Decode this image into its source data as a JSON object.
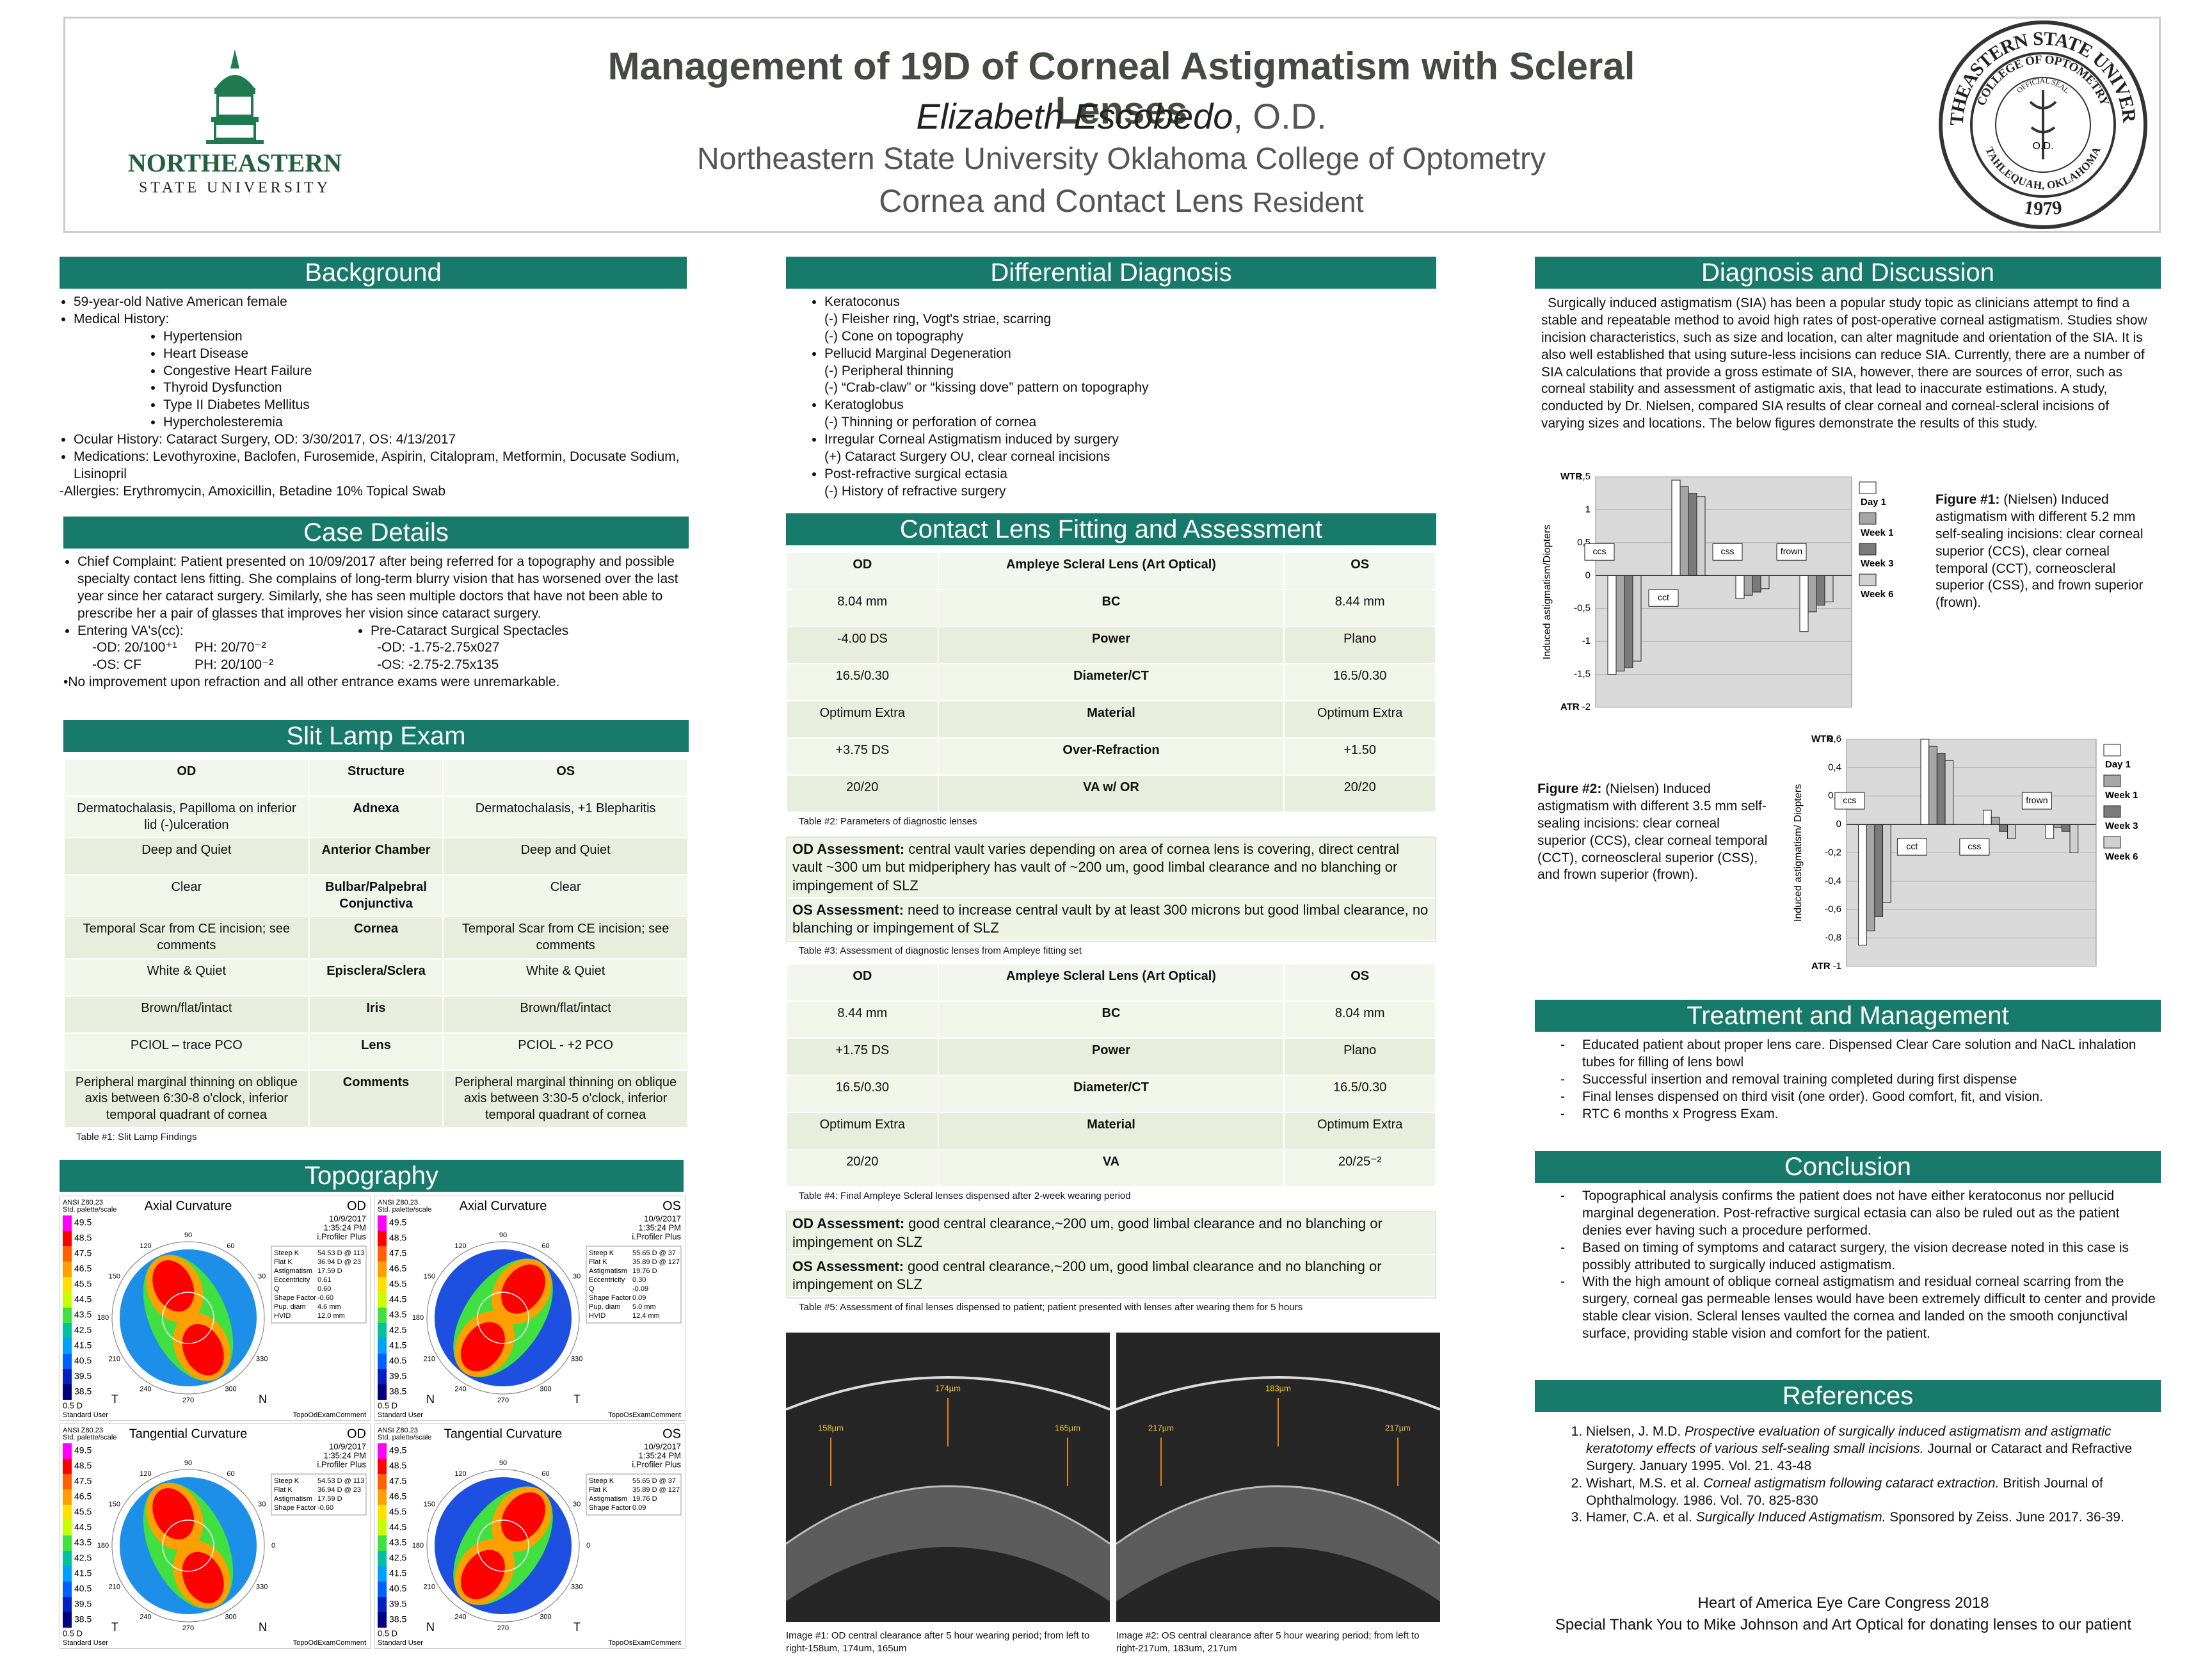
{
  "header": {
    "title": "Management of 19D of Corneal Astigmatism with Scleral Lenses",
    "author": "Elizabeth Escobedo",
    "author_suffix": ", O.D.",
    "institution": "Northeastern State University Oklahoma College of Optometry",
    "position": "Cornea and Contact Lens",
    "position_suffix": "Resident",
    "logo": [
      "NORTHEASTERN",
      "STATE UNIVERSITY"
    ],
    "seal": {
      "outer": "NORTHEASTERN STATE UNIVERSITY",
      "inner": "COLLEGE OF OPTOMETRY",
      "center_top": "OFFICIAL SEAL",
      "center": "O.D.",
      "bottom": "TAHLEQUAH, OKLAHOMA",
      "year": "1979"
    }
  },
  "background": {
    "title": "Background",
    "items": [
      {
        "text": "59-year-old Native American female"
      },
      {
        "text": "Medical History:",
        "sub": [
          "Hypertension",
          "Heart Disease",
          "Congestive Heart Failure",
          "Thyroid Dysfunction",
          "Type II Diabetes Mellitus",
          "Hypercholesteremia"
        ]
      },
      {
        "text": "Ocular History: Cataract Surgery, OD: 3/30/2017, OS: 4/13/2017"
      },
      {
        "text": "Medications: Levothyroxine, Baclofen, Furosemide, Aspirin, Citalopram, Metformin, Docusate Sodium, Lisinopril"
      }
    ],
    "note": "-Allergies: Erythromycin, Amoxicillin, Betadine 10% Topical Swab"
  },
  "case_details": {
    "title": "Case Details",
    "chief_complaint": "Chief Complaint: Patient presented on 10/09/2017 after being referred for a topography and possible specialty contact lens fitting. She complains of long-term blurry vision that has worsened over the last year since her cataract surgery. Similarly, she has seen multiple doctors that have not been able to prescribe her a pair of glasses that improves her vision since cataract surgery.",
    "entering_va": {
      "heading": "Entering VA's(cc):",
      "lines": [
        [
          "-OD: 20/100⁺¹",
          "PH: 20/70⁻²"
        ],
        [
          "-OS: CF",
          "PH: 20/100⁻²"
        ]
      ]
    },
    "spectacles": {
      "heading": "Pre-Cataract Surgical Spectacles",
      "lines": [
        "-OD: -1.75-2.75x027",
        "-OS: -2.75-2.75x135"
      ]
    },
    "note": "•No improvement upon refraction and all other entrance exams were unremarkable."
  },
  "slit_lamp": {
    "title": "Slit Lamp Exam",
    "table": {
      "header": [
        "OD",
        "Structure",
        "OS"
      ],
      "rows": [
        [
          "Dermatochalasis, Papilloma on inferior lid (-)ulceration",
          "Adnexa",
          "Dermatochalasis, +1 Blepharitis"
        ],
        [
          "Deep and Quiet",
          "Anterior Chamber",
          "Deep and Quiet"
        ],
        [
          "Clear",
          "Bulbar/Palpebral Conjunctiva",
          "Clear"
        ],
        [
          "Temporal Scar from CE incision; see comments",
          "Cornea",
          "Temporal Scar from CE incision; see comments"
        ],
        [
          "White & Quiet",
          "Episclera/Sclera",
          "White & Quiet"
        ],
        [
          "Brown/flat/intact",
          "Iris",
          "Brown/flat/intact"
        ],
        [
          "PCIOL – trace PCO",
          "Lens",
          "PCIOL - +2 PCO"
        ],
        [
          "Peripheral marginal thinning on oblique axis between 6:30-8 o'clock, inferior temporal quadrant of cornea",
          "Comments",
          "Peripheral marginal thinning on oblique axis between 3:30-5 o'clock, inferior temporal quadrant of cornea"
        ]
      ],
      "caption": "Table #1: Slit Lamp Findings"
    }
  },
  "topography": {
    "title": "Topography",
    "standard": "ANSI Z80.23",
    "palette": "Std. palette/scale",
    "scale": [
      49.5,
      48.5,
      47.5,
      46.5,
      45.5,
      44.5,
      43.5,
      42.5,
      41.5,
      40.5,
      39.5,
      38.5
    ],
    "step": "0.5 D",
    "date": "10/9/2017",
    "time": "1:35:24 PM",
    "device": "i.Profiler Plus",
    "user": "Standard User",
    "angles": [
      90,
      60,
      30,
      0,
      330,
      300,
      270,
      240,
      210,
      180,
      150,
      120
    ],
    "panels": [
      {
        "title": "Axial Curvature",
        "eye": "OD",
        "left": "T",
        "right": "N",
        "comment": "TopoOdExamComment",
        "stats": [
          [
            "Steep K",
            "54.53 D @ 113"
          ],
          [
            "Flat K",
            "36.94 D @ 23"
          ],
          [
            "Astigmatism",
            "17.59 D"
          ],
          [
            "Eccentricity",
            "0.61"
          ],
          [
            "Q",
            "0.60"
          ],
          [
            "Shape Factor",
            "-0.60"
          ],
          [
            "Pup. diam",
            "4.6 mm"
          ],
          [
            "HVID",
            "12.0 mm"
          ]
        ]
      },
      {
        "title": "Axial Curvature",
        "eye": "OS",
        "left": "N",
        "right": "T",
        "comment": "TopoOsExamComment",
        "stats": [
          [
            "Steep K",
            "55.65 D @ 37"
          ],
          [
            "Flat K",
            "35.89 D @ 127"
          ],
          [
            "Astigmatism",
            "19.76 D"
          ],
          [
            "Eccentricity",
            "0.30"
          ],
          [
            "Q",
            "-0.09"
          ],
          [
            "Shape Factor",
            "0.09"
          ],
          [
            "Pup. diam",
            "5.0 mm"
          ],
          [
            "HVID",
            "12.4 mm"
          ]
        ]
      },
      {
        "title": "Tangential Curvature",
        "eye": "OD",
        "left": "T",
        "right": "N",
        "comment": "TopoOdExamComment",
        "stats": [
          [
            "Steep K",
            "54.53 D @ 113"
          ],
          [
            "Flat K",
            "36.94 D @ 23"
          ],
          [
            "Astigmatism",
            "17.59 D"
          ],
          [
            "Shape Factor",
            "-0.60"
          ]
        ]
      },
      {
        "title": "Tangential Curvature",
        "eye": "OS",
        "left": "N",
        "right": "T",
        "comment": "TopoOsExamComment",
        "stats": [
          [
            "Steep K",
            "55.65 D @ 37"
          ],
          [
            "Flat K",
            "35.89 D @ 127"
          ],
          [
            "Astigmatism",
            "19.76 D"
          ],
          [
            "Shape Factor",
            "0.09"
          ]
        ]
      }
    ]
  },
  "differential": {
    "title": "Differential Diagnosis",
    "items": [
      {
        "text": "Keratoconus",
        "sub": [
          "(-) Fleisher ring, Vogt's striae, scarring",
          "(-) Cone on topography"
        ]
      },
      {
        "text": "Pellucid Marginal Degeneration",
        "sub": [
          "(-) Peripheral thinning",
          "(-) “Crab-claw” or “kissing dove” pattern on topography"
        ]
      },
      {
        "text": "Keratoglobus",
        "sub": [
          "(-) Thinning or perforation of cornea"
        ]
      },
      {
        "text": "Irregular Corneal Astigmatism induced by surgery",
        "sub": [
          "(+) Cataract Surgery OU, clear corneal incisions"
        ]
      },
      {
        "text": "Post-refractive surgical ectasia",
        "sub": [
          "(-) History of refractive surgery"
        ]
      }
    ]
  },
  "fitting": {
    "title": "Contact Lens Fitting and Assessment",
    "diagnostic_table": {
      "header": [
        "OD",
        "Ampleye Scleral Lens (Art Optical)",
        "OS"
      ],
      "rows": [
        [
          "8.04 mm",
          "BC",
          "8.44 mm"
        ],
        [
          "-4.00 DS",
          "Power",
          "Plano"
        ],
        [
          "16.5/0.30",
          "Diameter/CT",
          "16.5/0.30"
        ],
        [
          "Optimum Extra",
          "Material",
          "Optimum Extra"
        ],
        [
          "+3.75 DS",
          "Over-Refraction",
          "+1.50"
        ],
        [
          "20/20",
          "VA w/ OR",
          "20/20"
        ]
      ],
      "caption": "Table #2: Parameters of diagnostic lenses"
    },
    "diagnostic_assessment": {
      "rows": [
        {
          "label": "OD Assessment:",
          "text": "central vault varies depending on area of cornea lens is covering, direct central vault ~300 um but midperiphery has vault of ~200 um, good limbal clearance and no blanching or impingement of SLZ"
        },
        {
          "label": "OS Assessment:",
          "text": "need to increase central vault by at least 300 microns but good limbal clearance, no blanching or impingement of SLZ"
        }
      ],
      "caption": "Table #3: Assessment of diagnostic lenses from Ampleye fitting set"
    },
    "final_table": {
      "header": [
        "OD",
        "Ampleye Scleral Lens (Art Optical)",
        "OS"
      ],
      "rows": [
        [
          "8.44 mm",
          "BC",
          "8.04 mm"
        ],
        [
          "+1.75 DS",
          "Power",
          "Plano"
        ],
        [
          "16.5/0.30",
          "Diameter/CT",
          "16.5/0.30"
        ],
        [
          "Optimum Extra",
          "Material",
          "Optimum Extra"
        ],
        [
          "20/20",
          "VA",
          "20/25⁻²"
        ]
      ],
      "caption": "Table #4: Final Ampleye Scleral lenses dispensed after 2-week wearing period"
    },
    "final_assessment": {
      "rows": [
        {
          "label": "OD Assessment:",
          "text": "good central clearance,~200 um, good limbal clearance and no blanching or impingement on SLZ"
        },
        {
          "label": "OS Assessment:",
          "text": "good central clearance,~200 um, good limbal clearance and no blanching or impingement on SLZ"
        }
      ],
      "caption": "Table #5: Assessment of final lenses dispensed to patient; patient presented with lenses after wearing them for 5 hours"
    },
    "oct": [
      {
        "labels": [
          "158µm",
          "174µm",
          "165µm"
        ],
        "caption": "Image #1: OD central clearance after 5 hour wearing period; from left to right-158um, 174um, 165um"
      },
      {
        "labels": [
          "217µm",
          "183µm",
          "217µm"
        ],
        "caption": "Image #2: OS central clearance after 5 hour wearing period; from left to right-217um, 183um, 217um"
      }
    ]
  },
  "discussion": {
    "title": "Diagnosis and Discussion",
    "text": "Surgically induced astigmatism (SIA) has been a popular study topic as clinicians attempt to find a stable and repeatable method to avoid high rates of post-operative corneal astigmatism. Studies show incision characteristics, such as size and location, can alter magnitude and orientation of the SIA. It is also well established that using suture-less incisions can reduce SIA. Currently, there are a number of SIA calculations that provide a gross estimate of SIA, however, there are sources of error, such as corneal stability and assessment of astigmatic axis, that lead to inaccurate estimations. A study, conducted by Dr. Nielsen, compared SIA results of clear corneal and corneal-scleral incisions of varying sizes and locations. The below figures demonstrate the results of this study."
  },
  "chart_data": [
    {
      "type": "bar",
      "caption_label": "Figure #1:",
      "caption": " (Nielsen) Induced astigmatism with different 5.2 mm self-sealing incisions: clear corneal superior (CCS), clear corneal temporal (CCT), corneoscleral superior (CSS), and frown superior (frown).",
      "y_label": "Induced astigmatism/Diopters",
      "y_top_label": "WTR",
      "y_bottom_label": "ATR",
      "categories": [
        "ccs",
        "cct",
        "css",
        "frown"
      ],
      "series": [
        {
          "name": "Day 1",
          "color": "#ffffff",
          "values": [
            -1.5,
            1.45,
            -0.35,
            -0.85
          ]
        },
        {
          "name": "Week 1",
          "color": "#a6a6a6",
          "values": [
            -1.45,
            1.35,
            -0.3,
            -0.55
          ]
        },
        {
          "name": "Week 3",
          "color": "#7a7a7a",
          "values": [
            -1.4,
            1.25,
            -0.25,
            -0.45
          ]
        },
        {
          "name": "Week 6",
          "color": "#d0d0d0",
          "values": [
            -1.3,
            1.2,
            -0.2,
            -0.4
          ]
        }
      ],
      "ylim": [
        -2,
        1.5
      ],
      "yticks": [
        {
          "value": 1.5,
          "label": "1,5"
        },
        1,
        {
          "value": 0.5,
          "label": "0,5"
        },
        0,
        {
          "value": -0.5,
          "label": "-0,5"
        },
        -1,
        {
          "value": -1.5,
          "label": "-1,5"
        },
        -2
      ],
      "grid": true,
      "legend": "right"
    },
    {
      "type": "bar",
      "caption_label": "Figure #2:",
      "caption": " (Nielsen) Induced astigmatism with different 3.5 mm self-sealing incisions: clear corneal superior (CCS), clear corneal temporal (CCT), corneoscleral superior (CSS), and frown superior (frown).",
      "y_label": "Induced astigmatism/ Diopters",
      "y_top_label": "WTR",
      "y_bottom_label": "ATR",
      "categories": [
        "ccs",
        "cct",
        "css",
        "frown"
      ],
      "series": [
        {
          "name": "Day 1",
          "color": "#ffffff",
          "values": [
            -0.85,
            0.6,
            0.1,
            -0.1
          ]
        },
        {
          "name": "Week 1",
          "color": "#a6a6a6",
          "values": [
            -0.75,
            0.55,
            0.05,
            -0.02
          ]
        },
        {
          "name": "Week 3",
          "color": "#7a7a7a",
          "values": [
            -0.65,
            0.5,
            -0.05,
            -0.05
          ]
        },
        {
          "name": "Week 6",
          "color": "#d0d0d0",
          "values": [
            -0.55,
            0.45,
            -0.1,
            -0.2
          ]
        }
      ],
      "ylim": [
        -1,
        0.6
      ],
      "yticks": [
        {
          "value": 0.6,
          "label": "0,6"
        },
        {
          "value": 0.4,
          "label": "0,4"
        },
        {
          "value": 0.2,
          "label": "0,2"
        },
        0,
        {
          "value": -0.2,
          "label": "-0,2"
        },
        {
          "value": -0.4,
          "label": "-0,4"
        },
        {
          "value": -0.6,
          "label": "-0,6"
        },
        {
          "value": -0.8,
          "label": "-0,8"
        },
        -1
      ],
      "grid": true,
      "legend": "right"
    }
  ],
  "treatment": {
    "title": "Treatment and Management",
    "items": [
      "Educated patient about proper lens care. Dispensed Clear Care solution and NaCL inhalation tubes for filling of lens bowl",
      "Successful insertion and removal training completed during first dispense",
      "Final lenses dispensed on third visit (one order). Good comfort, fit, and vision.",
      "RTC 6 months x Progress Exam."
    ]
  },
  "conclusion": {
    "title": "Conclusion",
    "items": [
      "Topographical analysis confirms the patient does not have either keratoconus nor pellucid marginal degeneration. Post-refractive surgical ectasia can also be ruled out as the patient denies ever having such a procedure performed.",
      "Based on timing of symptoms and cataract surgery, the vision decrease noted in this case is possibly attributed to surgically induced astigmatism.",
      "With the high amount of oblique corneal astigmatism and residual corneal scarring from the surgery, corneal gas permeable lenses would have been extremely difficult to center and provide stable clear vision. Scleral lenses vaulted the cornea and landed on the smooth conjunctival surface, providing stable vision and comfort for the patient."
    ]
  },
  "references": {
    "title": "References",
    "items": [
      [
        "Nielsen, J. M.D. ",
        "Prospective evaluation of surgically induced astigmatism and astigmatic keratotomy effects of various self-sealing small incisions.",
        " Journal or Cataract and Refractive Surgery. January 1995. Vol. 21. 43-48"
      ],
      [
        "Wishart, M.S. et al. ",
        "Corneal astigmatism following cataract extraction.",
        " British Journal of Ophthalmology. 1986. Vol. 70. 825-830"
      ],
      [
        "Hamer, C.A. et al. ",
        "Surgically Induced Astigmatism.",
        " Sponsored by Zeiss. June 2017. 36-39."
      ]
    ]
  },
  "footer": [
    "Heart of America Eye Care Congress 2018",
    "Special Thank You to Mike Johnson and Art Optical for donating lenses to our patient"
  ]
}
